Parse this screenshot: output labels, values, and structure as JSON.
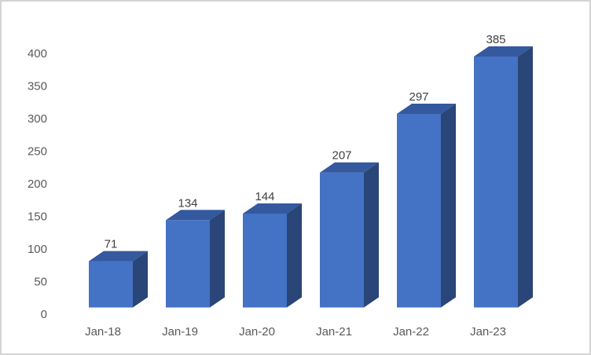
{
  "window": {
    "background": "#ffffff",
    "border_color": "#d4d4d4"
  },
  "chart_data": {
    "type": "bar",
    "variant": "3d-clustered-column",
    "title": "",
    "xlabel": "",
    "ylabel": "",
    "categories": [
      "Jan-18",
      "Jan-19",
      "Jan-20",
      "Jan-21",
      "Jan-22",
      "Jan-23"
    ],
    "values": [
      71,
      134,
      144,
      207,
      297,
      385
    ],
    "ylim": [
      0,
      400
    ],
    "ytick_step": 50,
    "ytick_labels": [
      "0",
      "50",
      "100",
      "150",
      "200",
      "250",
      "300",
      "350",
      "400"
    ],
    "grid": false,
    "legend": false,
    "data_labels_shown": true,
    "colors": {
      "bar_front": "#4472c4",
      "bar_top": "#35599e",
      "bar_side": "#2a4577",
      "axis_text": "#595959",
      "data_label_text": "#404040",
      "plot_background": "#ffffff"
    }
  }
}
